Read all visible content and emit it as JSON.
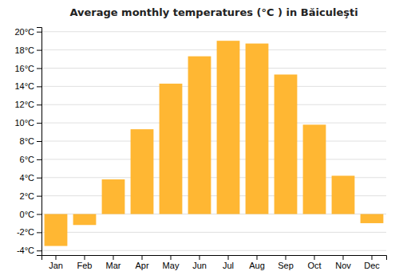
{
  "chart_data": {
    "type": "bar",
    "title": "Average monthly temperatures (°C ) in Băiculeşti",
    "categories": [
      "Jan",
      "Feb",
      "Mar",
      "Apr",
      "May",
      "Jun",
      "Jul",
      "Aug",
      "Sep",
      "Oct",
      "Nov",
      "Dec"
    ],
    "values": [
      -3.5,
      -1.2,
      3.8,
      9.3,
      14.3,
      17.3,
      19.0,
      18.7,
      15.3,
      9.8,
      4.2,
      -1.0
    ],
    "color": "#FFB733",
    "ylim": [
      -4.5,
      20.5
    ],
    "yticks": [
      {
        "value": -4,
        "label": "-4°C"
      },
      {
        "value": -2,
        "label": "-2°C"
      },
      {
        "value": 0,
        "label": "0°C"
      },
      {
        "value": 2,
        "label": "2°C"
      },
      {
        "value": 4,
        "label": "4°C"
      },
      {
        "value": 6,
        "label": "6°C"
      },
      {
        "value": 8,
        "label": "8°C"
      },
      {
        "value": 10,
        "label": "10°C"
      },
      {
        "value": 12,
        "label": "12°C"
      },
      {
        "value": 14,
        "label": "14°C"
      },
      {
        "value": 16,
        "label": "16°C"
      },
      {
        "value": 18,
        "label": "18°C"
      },
      {
        "value": 20,
        "label": "20°C"
      }
    ],
    "grid": true
  }
}
